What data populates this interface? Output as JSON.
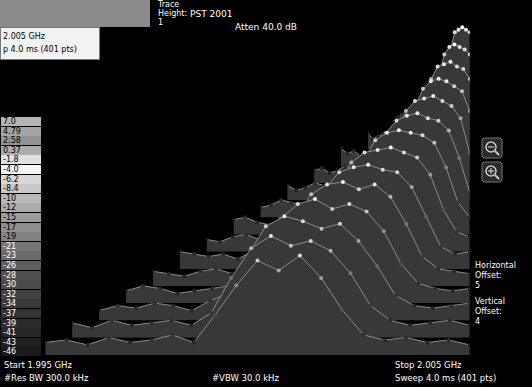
{
  "chart_data": {
    "type": "waterfall",
    "title": "Atten 40.0 dB",
    "x": [
      1.995,
      1.9955,
      1.996,
      1.9965,
      1.997,
      1.9975,
      1.998,
      1.9985,
      1.999,
      1.9995,
      2.0,
      2.0005,
      2.001,
      2.0015,
      2.002,
      2.0025,
      2.003,
      2.0035,
      2.004,
      2.0045,
      2.005
    ],
    "xlim": [
      1.995,
      2.005
    ],
    "ylim": [
      -46,
      7
    ],
    "tick_labels": false,
    "series": [
      {
        "values": [
          -41,
          -40,
          -42,
          -39,
          -41,
          -40,
          -38,
          -41,
          -30,
          -18,
          -8,
          -12,
          -6,
          -15,
          -28,
          -38,
          -40,
          -39,
          -41,
          -40,
          -42
        ]
      },
      {
        "values": [
          -40,
          -42,
          -39,
          -41,
          -40,
          -39,
          -41,
          -36,
          -22,
          -10,
          -5,
          -9,
          -7,
          -11,
          -20,
          -33,
          -39,
          -41,
          -40,
          -39,
          -41
        ]
      },
      {
        "values": [
          -42,
          -40,
          -41,
          -39,
          -40,
          -42,
          -38,
          -35,
          -20,
          -8,
          -4,
          -6,
          -9,
          -7,
          -14,
          -24,
          -36,
          -40,
          -41,
          -40,
          -39
        ]
      },
      {
        "values": [
          -41,
          -39,
          -40,
          -42,
          -41,
          -40,
          -39,
          -37,
          -26,
          -12,
          -6,
          -4,
          -8,
          -6,
          -9,
          -17,
          -30,
          -38,
          -40,
          -41,
          -40
        ]
      },
      {
        "values": [
          -40,
          -41,
          -42,
          -40,
          -39,
          -41,
          -40,
          -39,
          -33,
          -19,
          -9,
          -5,
          -4,
          -7,
          -5,
          -10,
          -21,
          -34,
          -39,
          -40,
          -41
        ]
      },
      {
        "values": [
          -39,
          -40,
          -41,
          -40,
          -42,
          -39,
          -41,
          -40,
          -38,
          -28,
          -14,
          -7,
          -5,
          -4,
          -6,
          -7,
          -13,
          -25,
          -37,
          -40,
          -39
        ]
      },
      {
        "values": [
          -41,
          -42,
          -40,
          -39,
          -41,
          -40,
          -42,
          -39,
          -40,
          -34,
          -22,
          -10,
          -6,
          -5,
          -4,
          -6,
          -8,
          -15,
          -29,
          -38,
          -40
        ]
      },
      {
        "values": [
          -40,
          -39,
          -41,
          -42,
          -40,
          -41,
          -39,
          -40,
          -41,
          -38,
          -30,
          -16,
          -8,
          -5,
          -4,
          -5,
          -6,
          -9,
          -19,
          -33,
          -39
        ]
      },
      {
        "values": [
          -42,
          -41,
          -39,
          -40,
          -41,
          -42,
          -40,
          -41,
          -39,
          -40,
          -36,
          -25,
          -12,
          -7,
          -5,
          -4,
          -6,
          -7,
          -11,
          -22,
          -36
        ]
      },
      {
        "values": [
          -40,
          -42,
          -41,
          -39,
          -40,
          -41,
          -42,
          -40,
          -41,
          -39,
          -40,
          -33,
          -20,
          -10,
          -6,
          -5,
          -4,
          -6,
          -8,
          -13,
          -27
        ]
      },
      {
        "values": [
          -41,
          -40,
          -42,
          -41,
          -39,
          -40,
          -41,
          -42,
          -40,
          -41,
          -39,
          -38,
          -28,
          -15,
          -8,
          -5,
          -4,
          -5,
          -7,
          -9,
          -17
        ]
      },
      {
        "values": [
          -39,
          -41,
          -40,
          -42,
          -41,
          -39,
          -40,
          -41,
          -42,
          -40,
          -41,
          -40,
          -35,
          -22,
          -11,
          -6,
          -5,
          -4,
          -6,
          -7,
          -11
        ]
      },
      {
        "values": [
          -40,
          -42,
          -41,
          -40,
          -42,
          -41,
          -39,
          -40,
          -41,
          -42,
          -40,
          -41,
          -39,
          -30,
          -16,
          -8,
          -5,
          -4,
          -5,
          -6,
          -8
        ]
      },
      {
        "values": [
          -41,
          -40,
          -39,
          -41,
          -40,
          -42,
          -41,
          -39,
          -40,
          -41,
          -42,
          -40,
          -41,
          -37,
          -24,
          -12,
          -6,
          -5,
          -4,
          -5,
          -6
        ]
      }
    ],
    "colorbar": {
      "range": [
        -46,
        7
      ],
      "ticks": [
        {
          "value": 7,
          "label": "7.0"
        },
        4.79,
        2.58,
        0.37,
        -1.8,
        {
          "value": -4,
          "label": "-4.0"
        },
        -6.2,
        -8.4,
        -10,
        -12,
        -15,
        -17,
        -19,
        -21,
        -23,
        -26,
        -28,
        -30,
        -32,
        -34,
        -37,
        -39,
        -41,
        -43,
        -46
      ],
      "colors": [
        "#b4b4b4",
        "#a4a4a4",
        "#949494",
        "#acacac",
        "#e0e0e0",
        "#f6f6f6",
        "#d8d8d8",
        "#c8c8c8",
        "#b8b8b8",
        "#aaaaaa",
        "#9c9c9c",
        "#8e8e8e",
        "#828282",
        "#767676",
        "#6a6a6a",
        "#5e5e5e",
        "#505050",
        "#4a4a4a",
        "#424242",
        "#3a3a3a",
        "#333333",
        "#2c2c2c",
        "#262626",
        "#202020",
        "#1a1a1a"
      ]
    },
    "annotations": {
      "header": "PST 2001",
      "trace_label": "Trace",
      "trace_height_label": "Height:",
      "trace_height": 1,
      "inset_freq": "2.005 GHz",
      "inset_sweep": "p 4.0 ms (401 pts)",
      "start": "Start 1.995 GHz",
      "stop": "Stop 2.005 GHz",
      "res_bw": "#Res BW 300.0 kHz",
      "vbw": "#VBW 30.0 kHz",
      "sweep": "Sweep 4.0 ms (401 pts)",
      "horizontal_offset_label": [
        "Horizontal",
        "Offset:"
      ],
      "horizontal_offset": 5,
      "vertical_offset_label": [
        "Vertical",
        "Offset:"
      ],
      "vertical_offset": 4
    }
  }
}
